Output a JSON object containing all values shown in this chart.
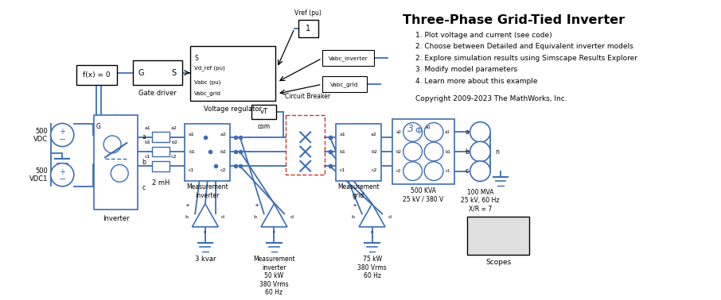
{
  "title": "Three-Phase Grid-Tied Inverter",
  "bg_color": "#ffffff",
  "line_color": "#3d6eb5",
  "box_color": "#000000",
  "text_color": "#000000",
  "bullet_points": [
    "1. Plot voltage and current (see code)",
    "2. Choose between Detailed and Equivalent inverter models",
    "2. Explore simulation results using Simscape Results Explorer",
    "3. Modify model parameters",
    "4. Learn more about this example"
  ],
  "copyright": "Copyright 2009-2023 The MathWorks, Inc."
}
